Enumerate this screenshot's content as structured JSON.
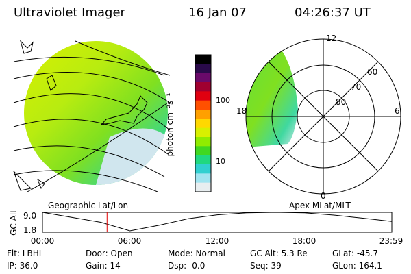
{
  "header": {
    "title": "Ultraviolet Imager",
    "date": "16 Jan 07",
    "time": "04:26:37 UT"
  },
  "panels": {
    "left_label": "Geographic Lat/Lon",
    "right_label": "Apex MLat/MLT"
  },
  "colorbar": {
    "unit_label": "photon cm⁻²s⁻¹",
    "ticks": [
      "100",
      "10"
    ],
    "colors": [
      "#000000",
      "#2a0a4a",
      "#6a0a6a",
      "#a00030",
      "#e00010",
      "#ff5000",
      "#ffa000",
      "#ffd800",
      "#d8f000",
      "#90ec00",
      "#40d820",
      "#20d880",
      "#30d0d0",
      "#a0e4f0",
      "#e8eef0"
    ]
  },
  "polar": {
    "mlt_labels": [
      "12",
      "18",
      "6",
      "0"
    ],
    "lat_labels": [
      "60",
      "70",
      "80"
    ]
  },
  "altitude_plot": {
    "ylabel": "GC Alt",
    "yticks": [
      "9.0",
      "1.8"
    ],
    "xticks": [
      "00:00",
      "06:00",
      "12:00",
      "18:00",
      "23:59"
    ],
    "current_time_marker": "04:26"
  },
  "chart_data": {
    "type": "line",
    "title": "Ultraviolet Imager",
    "xlabel": "",
    "ylabel": "GC Alt",
    "ylim": [
      1.8,
      9.0
    ],
    "x": [
      "00:00",
      "02:00",
      "04:00",
      "06:00",
      "08:00",
      "10:00",
      "12:00",
      "14:00",
      "16:00",
      "18:00",
      "20:00",
      "22:00",
      "23:59"
    ],
    "series": [
      {
        "values": [
          9.0,
          7.2,
          5.4,
          2.3,
          4.3,
          6.7,
          8.1,
          8.8,
          9.0,
          8.8,
          8.0,
          6.9,
          5.7
        ]
      }
    ],
    "marker_x": "04:26"
  },
  "info": {
    "filter": "Flt: LBHL",
    "door": "Door: Open",
    "mode": "Mode: Normal",
    "gc_alt": "GC Alt: 5.3 Re",
    "glat": "GLat: -45.7",
    "ip": "IP: 36.0",
    "gain": "Gain: 14",
    "dsp": "Dsp:    -0.0",
    "seq": "Seq: 39",
    "glon": "GLon: 164.1"
  }
}
